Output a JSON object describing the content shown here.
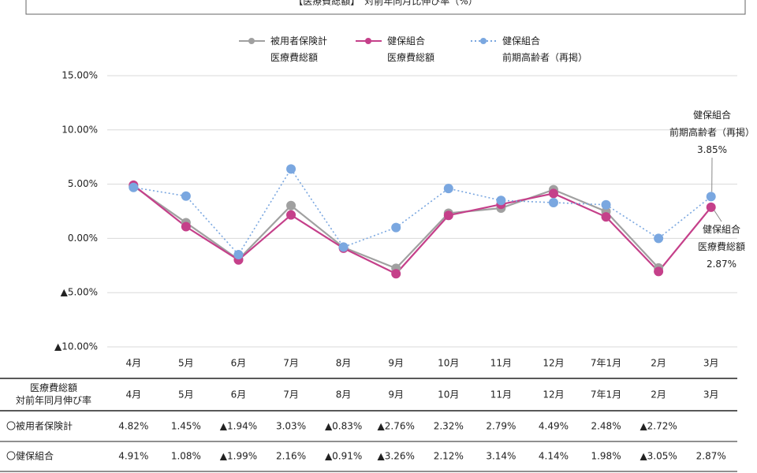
{
  "chart_data": {
    "type": "line",
    "title": "【医療費総額】　対前年同月比伸び率（%）",
    "categories": [
      "4月",
      "5月",
      "6月",
      "7月",
      "8月",
      "9月",
      "10月",
      "11月",
      "12月",
      "7年1月",
      "2月",
      "3月"
    ],
    "series": [
      {
        "name": "被用者保険計\n医療費総額",
        "color": "#a0a0a0",
        "style": "solid",
        "values": [
          4.82,
          1.45,
          -1.94,
          3.03,
          -0.83,
          -2.76,
          2.32,
          2.79,
          4.49,
          2.48,
          -2.72,
          null
        ],
        "value_labels": [
          "4.82%",
          "1.45%",
          "▲1.94%",
          "3.03%",
          "▲0.83%",
          "▲2.76%",
          "2.32%",
          "2.79%",
          "4.49%",
          "2.48%",
          "▲2.72%",
          null
        ]
      },
      {
        "name": "健保組合\n医療費総額",
        "color": "#c5408a",
        "style": "solid",
        "values": [
          4.91,
          1.08,
          -1.99,
          2.16,
          -0.91,
          -3.26,
          2.12,
          3.14,
          4.14,
          1.98,
          -3.05,
          2.87
        ],
        "value_labels": [
          "4.91%",
          "1.08%",
          "▲1.99%",
          "2.16%",
          "▲0.91%",
          "▲3.26%",
          "2.12%",
          "3.14%",
          "4.14%",
          "1.98%",
          "▲3.05%",
          "2.87%"
        ]
      },
      {
        "name": "健保組合\n前期高齢者（再掲）",
        "color": "#7aa7e0",
        "style": "dotted",
        "values": [
          4.7,
          3.9,
          -1.5,
          6.4,
          -0.8,
          1.0,
          4.6,
          3.5,
          3.3,
          3.1,
          0.0,
          3.85
        ]
      }
    ],
    "ylim": [
      -10,
      15
    ],
    "yticks": [
      {
        "value": -10,
        "label": "▲10.00%"
      },
      {
        "value": -5,
        "label": "▲5.00%"
      },
      {
        "value": 0,
        "label": "0.00%"
      },
      {
        "value": 5,
        "label": "5.00%"
      },
      {
        "value": 10,
        "label": "10.00%"
      },
      {
        "value": 15,
        "label": "15.00%"
      }
    ],
    "grid": true,
    "annotations": [
      {
        "text": "健保組合\n前期高齢者（再掲）\n3.85%",
        "series": 2,
        "index": 11
      },
      {
        "text": "健保組合\n医療費総額\n2.87%",
        "series": 1,
        "index": 11
      }
    ]
  },
  "table": {
    "header_label": "医療費総額\n対前年同月伸び率",
    "rows": [
      {
        "label": "〇被用者保険計",
        "series": 0
      },
      {
        "label": "〇健保組合",
        "series": 1
      }
    ]
  }
}
